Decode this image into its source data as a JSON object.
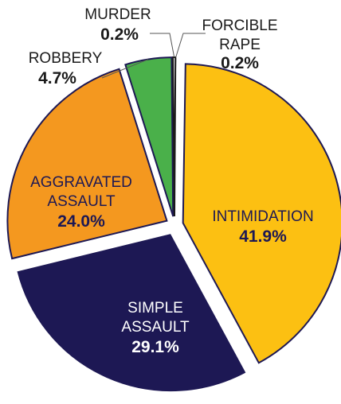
{
  "chart_data": {
    "type": "pie",
    "slices": [
      {
        "key": "forcible_rape",
        "label_lines": [
          "FORCIBLE",
          "RAPE"
        ],
        "value": 0.2,
        "value_text": "0.2%",
        "color": "#1a1a1a",
        "stroke": "#ffffff",
        "text_color": "#1a1a1a"
      },
      {
        "key": "intimidation",
        "label_lines": [
          "INTIMIDATION"
        ],
        "value": 41.9,
        "value_text": "41.9%",
        "color": "#fcc012",
        "stroke": "#1d1854",
        "text_color": "#1d1854"
      },
      {
        "key": "simple_assault",
        "label_lines": [
          "SIMPLE",
          "ASSAULT"
        ],
        "value": 29.1,
        "value_text": "29.1%",
        "color": "#1d1854",
        "stroke": "#ffffff",
        "text_color": "#ffffff"
      },
      {
        "key": "aggravated_assault",
        "label_lines": [
          "AGGRAVATED",
          "ASSAULT"
        ],
        "value": 24.0,
        "value_text": "24.0%",
        "color": "#f4981f",
        "stroke": "#1d1854",
        "text_color": "#1d1854"
      },
      {
        "key": "robbery",
        "label_lines": [
          "ROBBERY"
        ],
        "value": 4.7,
        "value_text": "4.7%",
        "color": "#4ab04a",
        "stroke": "#1d1854",
        "text_color": "#1a1a1a"
      },
      {
        "key": "murder",
        "label_lines": [
          "MURDER"
        ],
        "value": 0.2,
        "value_text": "0.2%",
        "color": "#ffffff",
        "stroke": "#1a1a1a",
        "text_color": "#1a1a1a"
      }
    ]
  }
}
